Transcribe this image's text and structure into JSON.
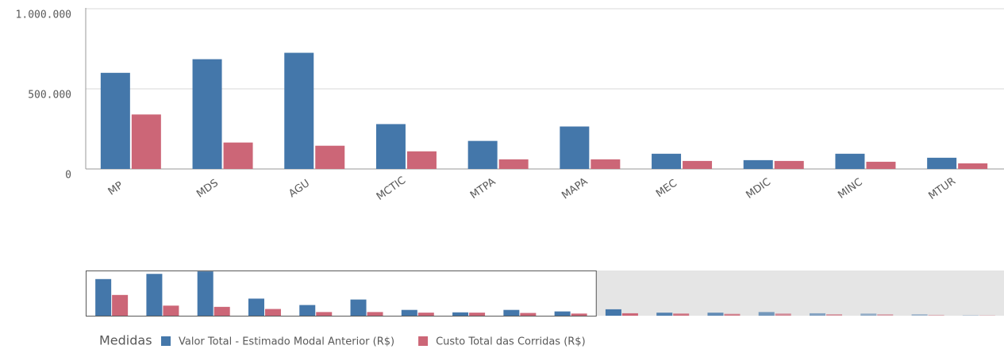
{
  "chart_data": {
    "type": "bar",
    "categories": [
      "MP",
      "MDS",
      "AGU",
      "MCTIC",
      "MTPA",
      "MAPA",
      "MEC",
      "MDIC",
      "MINC",
      "MTUR",
      null,
      null,
      null,
      null,
      null,
      null,
      null,
      null
    ],
    "series": [
      {
        "name": "Valor Total - Estimado Modal Anterior (R$)",
        "color": "#4477aa",
        "values": [
          600000,
          685000,
          725000,
          280000,
          175000,
          265000,
          95000,
          55000,
          95000,
          70000,
          105000,
          50000,
          50000,
          60000,
          40000,
          35000,
          25000,
          10000
        ]
      },
      {
        "name": "Custo Total das Corridas (R$)",
        "color": "#cc6677",
        "values": [
          340000,
          165000,
          145000,
          110000,
          60000,
          60000,
          50000,
          50000,
          45000,
          35000,
          40000,
          35000,
          30000,
          35000,
          25000,
          25000,
          15000,
          10000
        ]
      }
    ],
    "ylim": [
      0,
      1000000
    ],
    "yticks": [
      0,
      {
        "value": 500000,
        "label": "500.000"
      },
      {
        "value": 1000000,
        "label": "1.000.000"
      }
    ],
    "grid": true,
    "legend_title": "Medidas"
  }
}
